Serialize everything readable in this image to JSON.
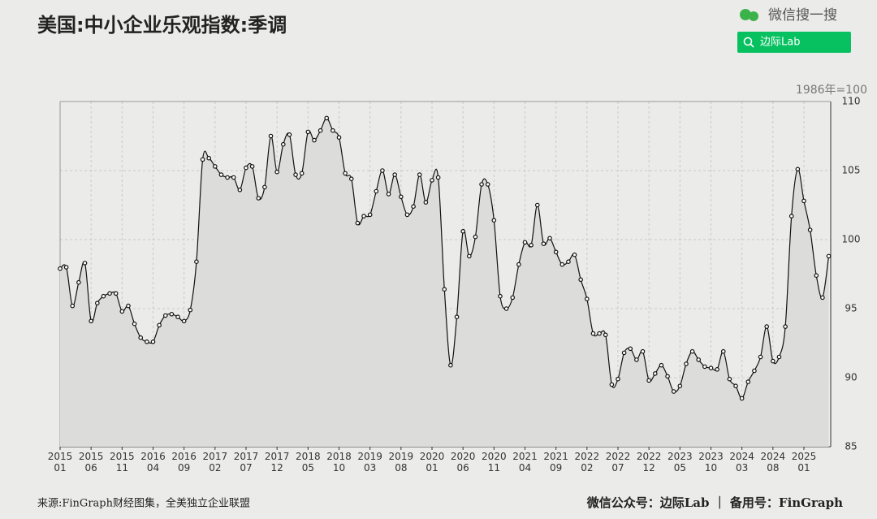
{
  "header": {
    "watermark": "微信搜一搜",
    "search": "边际Lab"
  },
  "chart_data": {
    "type": "line",
    "title": "美国:中小企业乐观指数:季调",
    "unit_label": "1986年=100",
    "categories": [
      "2015 01",
      null,
      null,
      null,
      null,
      "2015 06",
      null,
      null,
      null,
      null,
      "2015 11",
      null,
      null,
      null,
      null,
      "2016 04",
      null,
      null,
      null,
      null,
      "2016 09",
      null,
      null,
      null,
      null,
      "2017 02",
      null,
      null,
      null,
      null,
      "2017 07",
      null,
      null,
      null,
      null,
      "2017 12",
      null,
      null,
      null,
      null,
      "2018 05",
      null,
      null,
      null,
      null,
      "2018 10",
      null,
      null,
      null,
      null,
      "2019 03",
      null,
      null,
      null,
      null,
      "2019 08",
      null,
      null,
      null,
      null,
      "2020 01",
      null,
      null,
      null,
      null,
      "2020 06",
      null,
      null,
      null,
      null,
      "2020 11",
      null,
      null,
      null,
      null,
      "2021 04",
      null,
      null,
      null,
      null,
      "2021 09",
      null,
      null,
      null,
      null,
      "2022 02",
      null,
      null,
      null,
      null,
      "2022 07",
      null,
      null,
      null,
      null,
      "2022 12",
      null,
      null,
      null,
      null,
      "2023 05",
      null,
      null,
      null,
      null,
      "2023 10",
      null,
      null,
      null,
      null,
      "2024 03",
      null,
      null,
      null,
      null,
      "2024 08",
      null,
      null,
      null,
      null,
      "2025 01",
      null,
      null,
      null,
      null
    ],
    "values": [
      97.9,
      98.0,
      95.2,
      96.9,
      98.3,
      94.1,
      95.4,
      95.9,
      96.1,
      96.1,
      94.8,
      95.2,
      93.9,
      92.9,
      92.6,
      92.6,
      93.8,
      94.5,
      94.6,
      94.4,
      94.1,
      94.9,
      98.4,
      105.8,
      105.9,
      105.3,
      104.7,
      104.5,
      104.5,
      103.6,
      105.2,
      105.3,
      103.0,
      103.8,
      107.5,
      104.9,
      106.9,
      107.6,
      104.7,
      104.8,
      107.8,
      107.2,
      107.9,
      108.8,
      107.9,
      107.4,
      104.8,
      104.4,
      101.2,
      101.7,
      101.8,
      103.5,
      105.0,
      103.3,
      104.7,
      103.1,
      101.8,
      102.4,
      104.7,
      102.7,
      104.3,
      104.5,
      96.4,
      90.9,
      94.4,
      100.6,
      98.8,
      100.2,
      104.0,
      104.0,
      101.4,
      95.9,
      95.0,
      95.8,
      98.2,
      99.8,
      99.6,
      102.5,
      99.7,
      100.1,
      99.1,
      98.2,
      98.4,
      98.9,
      97.1,
      95.7,
      93.2,
      93.2,
      93.1,
      89.5,
      89.9,
      91.8,
      92.1,
      91.3,
      91.9,
      89.8,
      90.3,
      90.9,
      90.1,
      89.0,
      89.4,
      91.0,
      91.9,
      91.3,
      90.8,
      90.7,
      90.6,
      91.9,
      89.9,
      89.4,
      88.5,
      89.7,
      90.5,
      91.5,
      93.7,
      91.2,
      91.5,
      93.7,
      101.7,
      105.1,
      102.8,
      100.7,
      97.4,
      95.8,
      98.8
    ],
    "color": "#111111",
    "ylim": [
      85,
      110
    ],
    "yticks": [
      85,
      90,
      95,
      100,
      105,
      110
    ],
    "grid": true
  },
  "footer": {
    "source": "来源:FinGraph财经图集，全美独立企业联盟",
    "credit": "微信公众号：边际Lab ｜ 备用号：FinGraph"
  }
}
